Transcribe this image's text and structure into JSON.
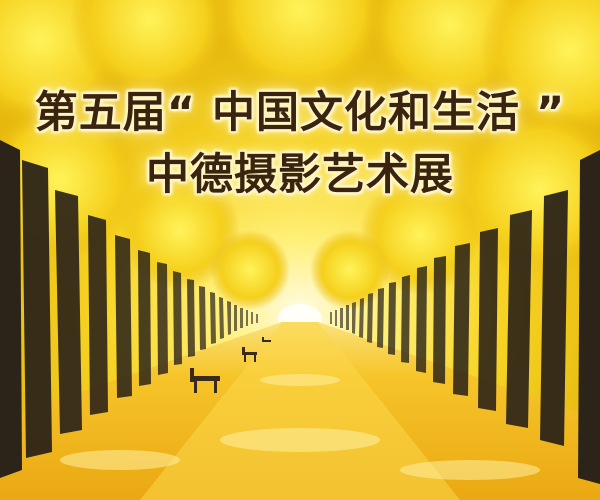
{
  "poster": {
    "title_line1": "第五届“ 中国文化和生活 ”",
    "title_line2": "中德摄影艺术展"
  },
  "colors": {
    "foliage": "#f6d21e",
    "foliage_light": "#fff27a",
    "ground": "#f1b71a",
    "trunk": "#2c2418",
    "text": "#3a2410"
  },
  "scene": {
    "subject": "avenue-of-yellow-ginkgo-trees",
    "elements": [
      "tree-canopy-icon",
      "tree-trunk-icon",
      "park-bench-icon",
      "path-icon"
    ]
  }
}
